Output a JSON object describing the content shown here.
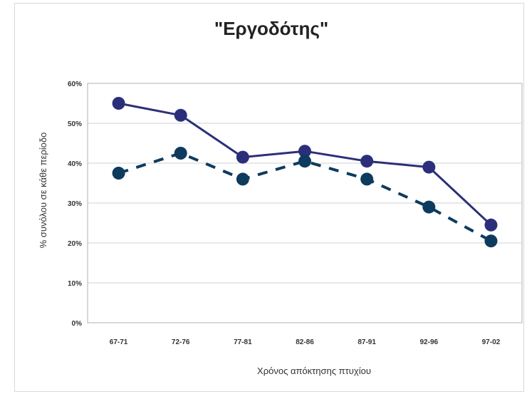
{
  "chart_data": {
    "type": "line",
    "title": "\"Εργοδότης\"",
    "xlabel": "Χρόνος απόκτησης πτυχίου",
    "ylabel": "% συνόλου σε κάθε περίοδο",
    "categories": [
      "67-71",
      "72-76",
      "77-81",
      "82-86",
      "87-91",
      "92-96",
      "97-02"
    ],
    "ylim": [
      0,
      60
    ],
    "yticks": [
      0,
      10,
      20,
      30,
      40,
      50,
      60
    ],
    "ytick_labels": [
      "0%",
      "10%",
      "20%",
      "30%",
      "40%",
      "50%",
      "60%"
    ],
    "grid": true,
    "series": [
      {
        "values": [
          55,
          52,
          41.5,
          43,
          40.5,
          39,
          24.5
        ],
        "style": "solid",
        "color": "#2b2f7a"
      },
      {
        "values": [
          37.5,
          42.5,
          36,
          40.5,
          36,
          29,
          20.5
        ],
        "style": "dashed",
        "color": "#0d3b5e"
      }
    ]
  }
}
